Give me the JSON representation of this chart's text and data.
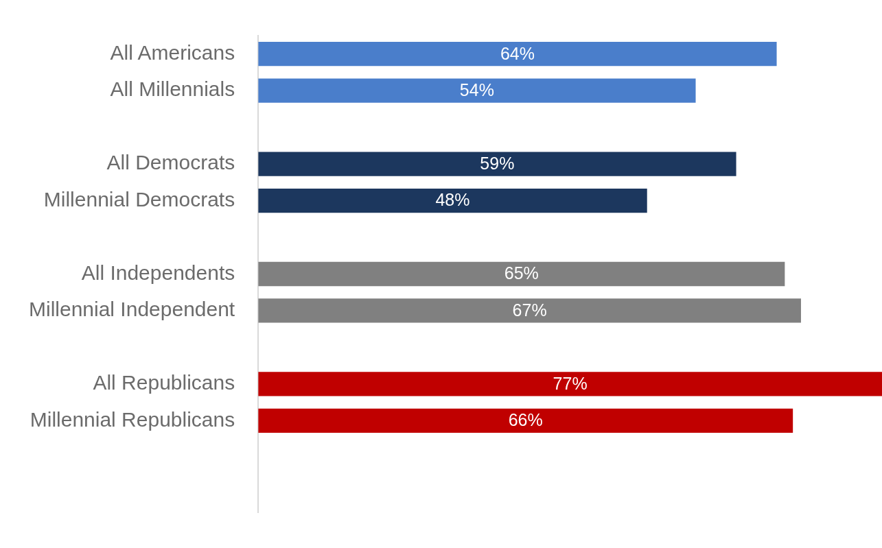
{
  "chart_data": {
    "type": "bar",
    "orientation": "horizontal",
    "categories": [
      "All Americans",
      "All Millennials",
      null,
      "All Democrats",
      "Millennial Democrats",
      null,
      "All Independents",
      "Millennial Independent",
      null,
      "All Republicans",
      "Millennial Republicans",
      null,
      null
    ],
    "values": [
      64,
      54,
      null,
      59,
      48,
      null,
      65,
      67,
      null,
      77,
      66,
      null,
      null
    ],
    "colors": [
      "#4a7ecb",
      "#4a7ecb",
      null,
      "#1c375e",
      "#1c375e",
      null,
      "#808080",
      "#808080",
      null,
      "#c00000",
      "#c00000",
      null,
      null
    ],
    "value_labels": [
      "64%",
      "54%",
      null,
      "59%",
      "48%",
      null,
      "65%",
      "67%",
      null,
      "77%",
      "66%",
      null,
      null
    ],
    "tick_labels": "y"
  }
}
